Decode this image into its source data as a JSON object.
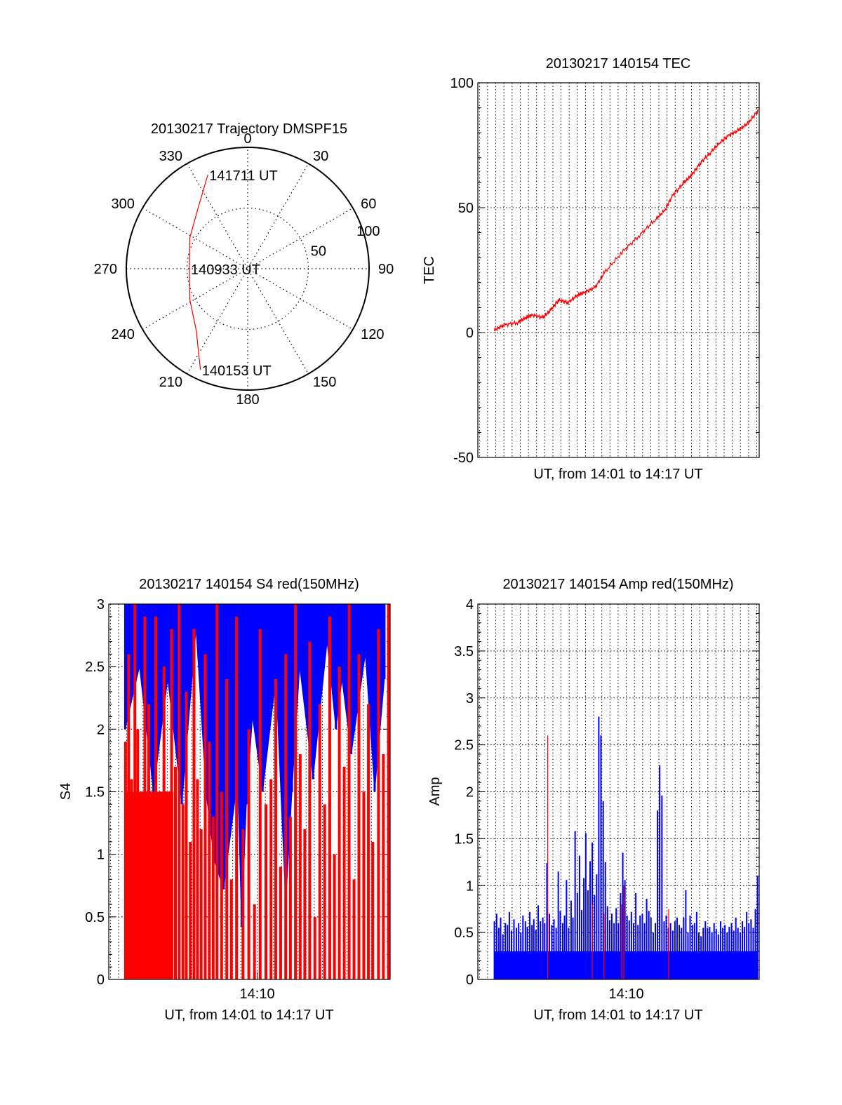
{
  "colors": {
    "primary": "#ff0000",
    "secondary": "#0000ff",
    "axis": "#000000",
    "grid": "#000000"
  },
  "chart_data": [
    {
      "type": "polar",
      "title": "20130217 Trajectory DMSPF15",
      "angle_labels": [
        "0",
        "30",
        "60",
        "90",
        "120",
        "150",
        "180",
        "210",
        "240",
        "270",
        "300",
        "330"
      ],
      "radial_ticks": [
        {
          "value": 50,
          "label": "50"
        },
        {
          "value": 100,
          "label": "100"
        }
      ],
      "annotations": [
        {
          "text": "141711 UT",
          "azimuth_deg": -23,
          "zenith": 84
        },
        {
          "text": "140933 UT",
          "azimuth_deg": -90,
          "zenith": 48
        },
        {
          "text": "140153 UT",
          "azimuth_deg": -155,
          "zenith": 92
        }
      ],
      "series": [
        {
          "color": "#ff0000",
          "points": [
            [
              -23,
              84
            ],
            [
              -40,
              64
            ],
            [
              -62,
              54
            ],
            [
              -90,
              48
            ],
            [
              -118,
              54
            ],
            [
              -140,
              66
            ],
            [
              -155,
              92
            ]
          ]
        }
      ]
    },
    {
      "type": "line",
      "title": "20130217 140154 TEC",
      "xlabel": "UT, from 14:01 to 14:17 UT",
      "ylabel": "TEC",
      "xlim": [
        14.015,
        14.3025
      ],
      "ylim": [
        -50,
        100
      ],
      "yticks": [
        {
          "value": -50,
          "label": "-50"
        },
        {
          "value": 0,
          "label": "0"
        },
        {
          "value": 50,
          "label": "50"
        },
        {
          "value": 100,
          "label": "100"
        }
      ],
      "xticks": [],
      "grid": true,
      "series": [
        {
          "color": "#ff0000",
          "x": [
            14.0318,
            14.0416,
            14.0556,
            14.0639,
            14.0706,
            14.0815,
            14.0894,
            14.0976,
            14.1072,
            14.1167,
            14.1236,
            14.1348,
            14.1444,
            14.1622,
            14.1803,
            14.1958,
            14.2061,
            14.2142,
            14.2256,
            14.2333,
            14.2428,
            14.2525,
            14.2621,
            14.2717,
            14.2814,
            14.2914,
            14.3018
          ],
          "y": [
            1,
            3,
            4,
            6,
            7,
            6,
            9,
            13,
            12,
            15,
            16,
            18,
            24,
            32,
            39,
            45,
            49,
            55,
            60,
            63,
            68,
            72,
            76,
            79,
            81,
            84,
            89
          ]
        }
      ]
    },
    {
      "type": "bar",
      "title": "20130217 140154 S4 red(150MHz)",
      "xlabel": "UT, from 14:01 to 14:17 UT",
      "ylabel": "S4",
      "xlim": [
        14.015,
        14.3025
      ],
      "ylim": [
        0,
        3
      ],
      "yticks": [
        {
          "value": 0,
          "label": "0"
        },
        {
          "value": 0.5,
          "label": "0.5"
        },
        {
          "value": 1,
          "label": "1"
        },
        {
          "value": 1.5,
          "label": "1.5"
        },
        {
          "value": 2,
          "label": "2"
        },
        {
          "value": 2.5,
          "label": "2.5"
        },
        {
          "value": 3,
          "label": "3"
        }
      ],
      "xticks": [
        {
          "value": 14.1667,
          "label": "14:10"
        }
      ],
      "grid": true,
      "series": [
        {
          "color": "#0000ff",
          "x": [
            14.0318,
            14.0464,
            14.0606,
            14.0753,
            14.0897,
            14.1042,
            14.1144,
            14.1228,
            14.1324,
            14.1467,
            14.1508,
            14.1556,
            14.1619,
            14.1722,
            14.1858,
            14.1958,
            14.2022,
            14.2101,
            14.2237,
            14.2381,
            14.2471,
            14.2533,
            14.2628,
            14.2772,
            14.2867,
            14.2967
          ],
          "y": [
            2.0,
            2.5,
            1.5,
            2.4,
            1.4,
            2.8,
            1.5,
            0.95,
            0.72,
            1.6,
            0.42,
            1.4,
            2.1,
            1.5,
            2.4,
            0.6,
            1.5,
            2.5,
            1.6,
            2.7,
            2.0,
            2.4,
            1.8,
            2.6,
            1.5,
            2.4
          ]
        },
        {
          "color": "#ff0000",
          "x": [
            14.0321,
            14.0353,
            14.0383,
            14.0417,
            14.0446,
            14.0479,
            14.0519,
            14.0558,
            14.0592,
            14.0631,
            14.0672,
            14.0714,
            14.0749,
            14.0792,
            14.0831,
            14.0869,
            14.0908,
            14.0942,
            14.0983,
            14.1021,
            14.1056,
            14.1094,
            14.1136,
            14.1178,
            14.1217,
            14.1256,
            14.1303,
            14.1356,
            14.1403,
            14.1456,
            14.1522,
            14.1581,
            14.1639,
            14.1697,
            14.1756,
            14.1808,
            14.1856,
            14.1906,
            14.1958,
            14.2006,
            14.2058,
            14.2106,
            14.2153,
            14.2203,
            14.2256,
            14.2306,
            14.2356,
            14.2408,
            14.2456,
            14.2506,
            14.2556,
            14.2606,
            14.2656,
            14.2706,
            14.2756,
            14.2803,
            14.2847,
            14.2906,
            14.2956,
            14.3008
          ],
          "y": [
            1.9,
            2.6,
            1.6,
            3.0,
            2.0,
            1.5,
            2.9,
            2.2,
            1.4,
            2.9,
            1.5,
            2.5,
            1.3,
            2.8,
            1.7,
            3.0,
            1.4,
            2.3,
            1.1,
            2.8,
            1.6,
            1.2,
            2.6,
            1.9,
            1.3,
            3.0,
            1.5,
            2.4,
            0.8,
            2.9,
            1.2,
            2.0,
            0.6,
            2.8,
            1.4,
            1.6,
            2.4,
            0.9,
            2.6,
            1.3,
            3.0,
            1.8,
            1.2,
            2.7,
            0.5,
            2.2,
            1.4,
            2.9,
            1.0,
            2.5,
            1.7,
            3.0,
            0.8,
            2.6,
            1.5,
            2.2,
            1.1,
            2.8,
            1.8,
            3.0
          ]
        }
      ]
    },
    {
      "type": "bar",
      "title": "20130217 140154 Amp red(150MHz)",
      "xlabel": "UT, from 14:01 to 14:17 UT",
      "ylabel": "Amp",
      "xlim": [
        14.015,
        14.3025
      ],
      "ylim": [
        0,
        4
      ],
      "yticks": [
        {
          "value": 0,
          "label": "0"
        },
        {
          "value": 0.5,
          "label": "0.5"
        },
        {
          "value": 1,
          "label": "1"
        },
        {
          "value": 1.5,
          "label": "1.5"
        },
        {
          "value": 2,
          "label": "2"
        },
        {
          "value": 2.5,
          "label": "2.5"
        },
        {
          "value": 3,
          "label": "3"
        },
        {
          "value": 3.5,
          "label": "3.5"
        },
        {
          "value": 4,
          "label": "4"
        }
      ],
      "xticks": [
        {
          "value": 14.1667,
          "label": "14:10"
        }
      ],
      "grid": true,
      "series": [
        {
          "color": "#ff0000",
          "x": [
            14.0864,
            14.1319,
            14.1439,
            14.1619,
            14.1642,
            14.21
          ],
          "y": [
            2.6,
            0.8,
            0.7,
            0.8,
            1.0,
            0.75
          ]
        },
        {
          "color": "#0000ff",
          "x": [
            14.0319,
            14.0342,
            14.0364,
            14.0383,
            14.0406,
            14.0431,
            14.0453,
            14.0472,
            14.0494,
            14.0519,
            14.0544,
            14.0567,
            14.0589,
            14.0611,
            14.0636,
            14.0656,
            14.0681,
            14.0703,
            14.0722,
            14.0744,
            14.0767,
            14.0789,
            14.0814,
            14.0833,
            14.0856,
            14.0881,
            14.0906,
            14.0928,
            14.095,
            14.0972,
            14.0992,
            14.1017,
            14.1036,
            14.1056,
            14.1078,
            14.1103,
            14.1122,
            14.1144,
            14.1167,
            14.1189,
            14.1211,
            14.1233,
            14.1253,
            14.1275,
            14.1297,
            14.1319,
            14.1342,
            14.1364,
            14.1386,
            14.1408,
            14.1431,
            14.1453,
            14.1475,
            14.1497,
            14.1519,
            14.1542,
            14.1564,
            14.1586,
            14.1608,
            14.1631,
            14.1653,
            14.1675,
            14.1697,
            14.1719,
            14.1742,
            14.1764,
            14.1786,
            14.1808,
            14.1831,
            14.1853,
            14.1875,
            14.1897,
            14.1919,
            14.1942,
            14.1964,
            14.1986,
            14.2008,
            14.2031,
            14.2053,
            14.2075,
            14.2097,
            14.2119,
            14.2142,
            14.2164,
            14.2186,
            14.2208,
            14.2231,
            14.2253,
            14.2275,
            14.2297,
            14.2319,
            14.2342,
            14.2364,
            14.2386,
            14.2408,
            14.2431,
            14.2453,
            14.2475,
            14.2497,
            14.2519,
            14.2542,
            14.2564,
            14.2586,
            14.2608,
            14.2631,
            14.2653,
            14.2675,
            14.2697,
            14.2719,
            14.2742,
            14.2764,
            14.2786,
            14.2808,
            14.2831,
            14.2853,
            14.2875,
            14.2897,
            14.2919,
            14.2942,
            14.2964,
            14.2986,
            14.3008
          ],
          "y": [
            0.62,
            0.7,
            0.55,
            0.66,
            0.48,
            0.6,
            0.58,
            0.72,
            0.52,
            0.64,
            0.55,
            0.6,
            0.5,
            0.68,
            0.62,
            0.56,
            0.72,
            0.58,
            0.64,
            0.53,
            0.79,
            0.62,
            0.66,
            0.6,
            1.24,
            0.7,
            0.58,
            0.64,
            0.55,
            1.15,
            0.73,
            0.6,
            0.68,
            1.06,
            0.55,
            0.84,
            0.66,
            1.58,
            0.92,
            1.32,
            0.74,
            1.08,
            1.56,
            0.95,
            1.26,
            1.46,
            0.9,
            1.12,
            2.8,
            2.6,
            1.9,
            1.25,
            0.78,
            0.63,
            0.7,
            0.6,
            0.76,
            0.6,
            0.92,
            1.35,
            1.06,
            0.68,
            0.63,
            0.72,
            0.6,
            0.92,
            0.58,
            0.68,
            0.7,
            0.6,
            0.86,
            0.73,
            0.66,
            0.5,
            0.6,
            1.8,
            2.28,
            1.96,
            0.62,
            0.68,
            0.55,
            0.6,
            0.52,
            0.62,
            0.66,
            0.58,
            0.55,
            0.66,
            0.95,
            0.5,
            0.68,
            0.58,
            0.6,
            0.72,
            0.5,
            0.46,
            0.55,
            0.62,
            0.55,
            0.56,
            0.5,
            0.6,
            0.54,
            0.48,
            0.62,
            0.55,
            0.58,
            0.5,
            0.56,
            0.6,
            0.52,
            0.66,
            0.55,
            0.5,
            0.62,
            0.56,
            0.72,
            0.6,
            0.64,
            0.55,
            0.75,
            1.1
          ]
        }
      ]
    }
  ]
}
